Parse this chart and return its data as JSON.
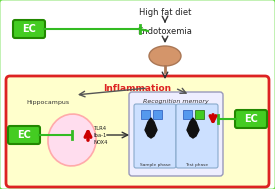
{
  "bg_color": "#ffffff",
  "outer_border_color": "#66dd44",
  "inner_bg_color": "#ffffcc",
  "inner_border_color": "#dd2222",
  "ec_box_color": "#44cc22",
  "ec_text": "EC",
  "title_text": "High fat diet",
  "endotoxemia_text": "Endotoxemia",
  "inflammation_text": "Inflammation",
  "hippocampus_text": "Hippocampus",
  "recog_text": "Recognition memory",
  "markers_text": "TLR4\nIba-1\nNOX4",
  "sample_text": "Sample phase",
  "test_text": "Test phase",
  "inhibit_line_color": "#33bb22",
  "red_arrow_color": "#cc0000",
  "blue_box_color": "#5599ee",
  "green_box_color": "#44cc22",
  "brain_color": "#d4956a",
  "hippocampus_fill": "#ffddee",
  "hippocampus_border": "#ffaaaa"
}
